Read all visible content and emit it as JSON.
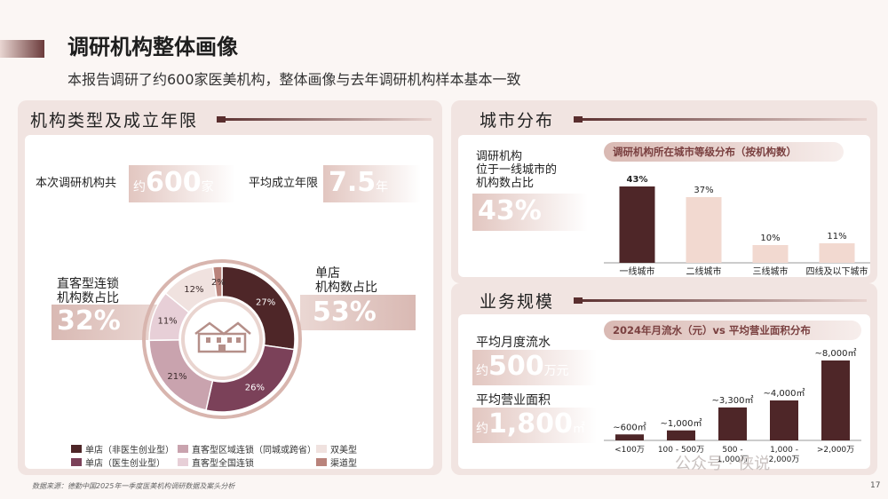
{
  "header": {
    "title": "调研机构整体画像",
    "subtitle": "本报告调研了约600家医美机构，整体画像与去年调研机构样本基本一致"
  },
  "left_panel": {
    "title": "机构类型及成立年限",
    "total_label": "本次调研机构共",
    "total_pre": "约",
    "total_value": "600",
    "total_unit": "家",
    "years_label": "平均成立年限",
    "years_value": "7.5",
    "years_unit": "年",
    "chain_label_1": "直客型连锁",
    "chain_label_2": "机构数占比",
    "chain_pct": "32%",
    "single_label_1": "单店",
    "single_label_2": "机构数占比",
    "single_pct": "53%",
    "legend": [
      {
        "label": "单店（非医生创业型）",
        "color": "#4e2628"
      },
      {
        "label": "直客型区域连锁（同城或跨省）",
        "color": "#c9a3ae"
      },
      {
        "label": "双美型",
        "color": "#f0e2df"
      },
      {
        "label": "单店（医生创业型）",
        "color": "#7b4159"
      },
      {
        "label": "直客型全国连锁",
        "color": "#e7cfd7"
      },
      {
        "label": "渠道型",
        "color": "#b9837b"
      }
    ]
  },
  "donut": {
    "segments": [
      {
        "name": "单店（非医生创业型）",
        "value": 27,
        "label": "27%",
        "color": "#4e2628",
        "text_color": "#ffffff"
      },
      {
        "name": "单店（医生创业型）",
        "value": 26,
        "label": "26%",
        "color": "#7b4159",
        "text_color": "#ffffff"
      },
      {
        "name": "直客型区域连锁（同城或跨省）",
        "value": 21,
        "label": "21%",
        "color": "#c9a3ae",
        "text_color": "#3a2a2a"
      },
      {
        "name": "直客型全国连锁",
        "value": 11,
        "label": "11%",
        "color": "#e7cfd7",
        "text_color": "#3a2a2a"
      },
      {
        "name": "双美型",
        "value": 12,
        "label": "12%",
        "color": "#f0e2df",
        "text_color": "#3a2a2a"
      },
      {
        "name": "渠道型",
        "value": 2,
        "label": "2%",
        "color": "#b9837b",
        "text_color": "#3a2a2a"
      }
    ]
  },
  "city_panel": {
    "title": "城市分布",
    "desc_1": "调研机构",
    "desc_2": "位于一线城市的",
    "desc_3": "机构数占比",
    "pct": "43%",
    "chart_title": "调研机构所在城市等级分布（按机构数）"
  },
  "biz_panel": {
    "title": "业务规模",
    "flow_label": "平均月度流水",
    "flow_pre": "约",
    "flow_value": "500",
    "flow_unit": "万元",
    "area_label": "平均营业面积",
    "area_pre": "约",
    "area_value": "1,800",
    "area_unit": "㎡",
    "chart_title": "2024年月流水（元）vs 平均营业面积分布"
  },
  "chart_data": [
    {
      "type": "bar",
      "title": "调研机构所在城市等级分布（按机构数）",
      "categories": [
        "一线城市",
        "二线城市",
        "三线城市",
        "四线及以下城市"
      ],
      "values": [
        43,
        37,
        10,
        11
      ],
      "value_labels": [
        "43%",
        "37%",
        "10%",
        "11%"
      ],
      "colors": [
        "#4e2628",
        "#f2d9d0",
        "#f2d9d0",
        "#f2d9d0"
      ],
      "ylim": [
        0,
        45
      ]
    },
    {
      "type": "bar",
      "title": "2024年月流水（元）vs 平均营业面积分布",
      "categories": [
        "<100万",
        "100 - 500万",
        "500 - 1,000万",
        "1,000 - 2,000万",
        ">2,000万"
      ],
      "category_lines": [
        [
          "<100万"
        ],
        [
          "100 - 500万"
        ],
        [
          "500 -",
          "1,000万"
        ],
        [
          "1,000 -",
          "2,000万"
        ],
        [
          ">2,000万"
        ]
      ],
      "values": [
        600,
        1000,
        3300,
        4000,
        8000
      ],
      "value_labels": [
        "~600㎡",
        "~1,000㎡",
        "~3,300㎡",
        "~4,000㎡",
        "~8,000㎡"
      ],
      "colors": [
        "#4e2628",
        "#4e2628",
        "#4e2628",
        "#4e2628",
        "#4e2628"
      ],
      "ylim": [
        0,
        8000
      ]
    }
  ],
  "footer": {
    "source": "数据来源：德勤中国2025年一季度医美机构调研数据及案头分析",
    "page": "17",
    "watermark": "公众号 · 侠说"
  }
}
